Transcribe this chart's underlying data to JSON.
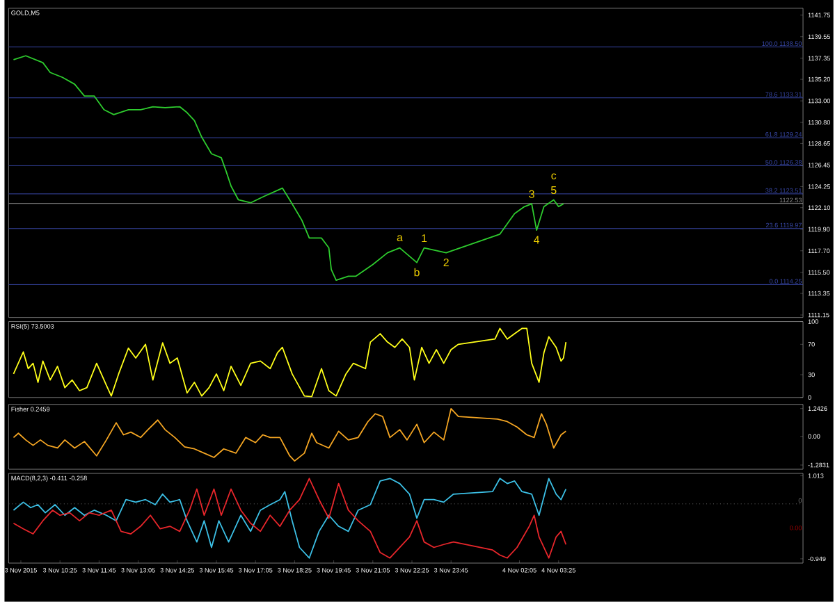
{
  "chart_data": [
    {
      "type": "line",
      "title": "GOLD,M5",
      "tick_labels": "y",
      "xlim": [
        "2015-11-03T08:40",
        "2015-11-04T11:45"
      ],
      "ylim": [
        1110.9,
        1142.45
      ],
      "x": [
        "2015-11-03T08:50",
        "2015-11-03T09:15",
        "2015-11-03T09:50",
        "2015-11-03T10:05",
        "2015-11-03T10:30",
        "2015-11-03T10:55",
        "2015-11-03T11:15",
        "2015-11-03T11:35",
        "2015-11-03T11:55",
        "2015-11-03T12:15",
        "2015-11-03T12:45",
        "2015-11-03T13:10",
        "2015-11-03T13:35",
        "2015-11-03T14:00",
        "2015-11-03T14:30",
        "2015-11-03T14:45",
        "2015-11-03T15:00",
        "2015-11-03T15:15",
        "2015-11-03T15:35",
        "2015-11-03T15:55",
        "2015-11-03T16:05",
        "2015-11-03T16:15",
        "2015-11-03T16:30",
        "2015-11-03T16:55",
        "2015-11-03T17:20",
        "2015-11-03T18:00",
        "2015-11-03T18:15",
        "2015-11-03T18:40",
        "2015-11-03T18:55",
        "2015-11-03T19:20",
        "2015-11-03T19:35",
        "2015-11-03T19:40",
        "2015-11-03T19:50",
        "2015-11-03T20:15",
        "2015-11-03T20:30",
        "2015-11-03T21:05",
        "2015-11-03T21:35",
        "2015-11-03T22:00",
        "2015-11-03T22:35",
        "2015-11-03T22:50",
        "2015-11-03T23:35",
        "2015-11-04T01:25",
        "2015-11-04T01:45",
        "2015-11-04T01:55",
        "2015-11-04T02:15",
        "2015-11-04T02:30",
        "2015-11-04T02:40",
        "2015-11-04T02:55",
        "2015-11-04T03:15",
        "2015-11-04T03:25",
        "2015-11-04T03:35"
      ],
      "series": [
        {
          "color": "#2ecc2e",
          "values": [
            1137.2,
            1137.6,
            1136.9,
            1135.9,
            1135.4,
            1134.7,
            1133.5,
            1133.5,
            1132.1,
            1131.6,
            1132.1,
            1132.1,
            1132.4,
            1132.3,
            1132.4,
            1131.8,
            1131.0,
            1129.3,
            1127.6,
            1127.2,
            1125.8,
            1124.3,
            1122.9,
            1122.6,
            1123.2,
            1124.1,
            1122.9,
            1120.8,
            1119.0,
            1119.0,
            1118.0,
            1115.8,
            1114.7,
            1115.1,
            1115.1,
            1116.3,
            1117.5,
            1118.0,
            1116.5,
            1118.0,
            1117.5,
            1119.4,
            1120.8,
            1121.5,
            1122.2,
            1122.5,
            1119.8,
            1122.2,
            1122.9,
            1122.2,
            1122.5
          ]
        }
      ],
      "yticks": [
        1141.75,
        1139.55,
        1137.35,
        {
          "value": 1135.2,
          "label": "1135.20"
        },
        {
          "value": 1133.0,
          "label": "1133.00"
        },
        {
          "value": 1130.8,
          "label": "1130.80"
        },
        1128.65,
        1126.45,
        1124.25,
        {
          "value": 1122.1,
          "label": "1122.10"
        },
        {
          "value": 1119.9,
          "label": "1119.90"
        },
        {
          "value": 1117.7,
          "label": "1117.70"
        },
        {
          "value": 1115.5,
          "label": "1115.50"
        },
        1113.35,
        1111.15
      ],
      "ref_lines": [
        {
          "axis": "y",
          "value": 1138.5,
          "label": "100.0 1138.50",
          "color": "#3848a8"
        },
        {
          "axis": "y",
          "value": 1133.31,
          "label": "78.6 1133.31",
          "color": "#3848a8"
        },
        {
          "axis": "y",
          "value": 1129.24,
          "label": "61.8 1129.24",
          "color": "#3848a8"
        },
        {
          "axis": "y",
          "value": 1126.38,
          "label": "50.0 1126.38",
          "color": "#3848a8"
        },
        {
          "axis": "y",
          "value": 1123.51,
          "label": "38.2 1123.51",
          "color": "#3848a8"
        },
        {
          "axis": "y",
          "value": 1122.53,
          "label": "1122.53",
          "color": "#8a8a8a"
        },
        {
          "axis": "y",
          "value": 1119.97,
          "label": "23.6 1119.97",
          "color": "#3848a8"
        },
        {
          "axis": "y",
          "value": 1114.25,
          "label": "0.0 1114.25",
          "color": "#3848a8"
        }
      ],
      "annotations": [
        {
          "text": "a",
          "x": "2015-11-03T22:00",
          "y": 1118.0
        },
        {
          "text": "b",
          "x": "2015-11-03T22:35",
          "y": 1116.5
        },
        {
          "text": "1",
          "x": "2015-11-03T22:50",
          "y": 1118.0
        },
        {
          "text": "2",
          "x": "2015-11-03T23:35",
          "y": 1117.5
        },
        {
          "text": "3",
          "x": "2015-11-04T02:30",
          "y": 1122.5
        },
        {
          "text": "4",
          "x": "2015-11-04T02:40",
          "y": 1119.8
        },
        {
          "text": "5",
          "x": "2015-11-04T03:15",
          "y": 1122.9
        },
        {
          "text": "c",
          "x": "2015-11-04T03:15",
          "y": 1122.9
        }
      ]
    },
    {
      "type": "line",
      "title": "RSI(5) 73.5003",
      "tick_labels": "y",
      "xlim": [
        "2015-11-03T08:40",
        "2015-11-04T11:45"
      ],
      "ylim": [
        0,
        100
      ],
      "yticks": [
        100,
        70,
        30,
        0
      ],
      "x": [
        "2015-11-03T08:50",
        "2015-11-03T09:10",
        "2015-11-03T09:20",
        "2015-11-03T09:30",
        "2015-11-03T09:40",
        "2015-11-03T09:50",
        "2015-11-03T10:05",
        "2015-11-03T10:20",
        "2015-11-03T10:35",
        "2015-11-03T10:50",
        "2015-11-03T11:05",
        "2015-11-03T11:20",
        "2015-11-03T11:40",
        "2015-11-03T12:00",
        "2015-11-03T12:10",
        "2015-11-03T12:25",
        "2015-11-03T12:45",
        "2015-11-03T13:00",
        "2015-11-03T13:20",
        "2015-11-03T13:35",
        "2015-11-03T13:55",
        "2015-11-03T14:10",
        "2015-11-03T14:25",
        "2015-11-03T14:45",
        "2015-11-03T15:00",
        "2015-11-03T15:15",
        "2015-11-03T15:30",
        "2015-11-03T15:45",
        "2015-11-03T16:00",
        "2015-11-03T16:15",
        "2015-11-03T16:35",
        "2015-11-03T16:55",
        "2015-11-03T17:15",
        "2015-11-03T17:35",
        "2015-11-03T17:50",
        "2015-11-03T18:00",
        "2015-11-03T18:20",
        "2015-11-03T18:45",
        "2015-11-03T19:00",
        "2015-11-03T19:20",
        "2015-11-03T19:35",
        "2015-11-03T19:50",
        "2015-11-03T20:10",
        "2015-11-03T20:25",
        "2015-11-03T20:50",
        "2015-11-03T21:00",
        "2015-11-03T21:20",
        "2015-11-03T21:35",
        "2015-11-03T21:50",
        "2015-11-03T22:05",
        "2015-11-03T22:20",
        "2015-11-03T22:30",
        "2015-11-03T22:45",
        "2015-11-03T23:00",
        "2015-11-03T23:15",
        "2015-11-03T23:30",
        "2015-11-03T23:45",
        "2015-11-04T00:00",
        "2015-11-04T01:15",
        "2015-11-04T01:25",
        "2015-11-04T01:40",
        "2015-11-04T01:55",
        "2015-11-04T02:10",
        "2015-11-04T02:20",
        "2015-11-04T02:30",
        "2015-11-04T02:45",
        "2015-11-04T02:55",
        "2015-11-04T03:05",
        "2015-11-04T03:20",
        "2015-11-04T03:30",
        "2015-11-04T03:35",
        "2015-11-04T03:40"
      ],
      "series": [
        {
          "color": "#ffff1a",
          "values": [
            31,
            60,
            38,
            45,
            20,
            48,
            23,
            41,
            13,
            23,
            9,
            13,
            45,
            16,
            2,
            31,
            65,
            52,
            70,
            23,
            72,
            45,
            52,
            6,
            20,
            2,
            13,
            31,
            9,
            41,
            16,
            45,
            48,
            38,
            59,
            66,
            31,
            2,
            1,
            38,
            9,
            2,
            31,
            45,
            38,
            73,
            84,
            73,
            66,
            77,
            66,
            23,
            66,
            45,
            63,
            45,
            63,
            70,
            77,
            91,
            77,
            84,
            91,
            91,
            45,
            20,
            59,
            80,
            66,
            48,
            52,
            73
          ]
        }
      ]
    },
    {
      "type": "line",
      "title": "Fisher 0.2459",
      "tick_labels": "y",
      "xlim": [
        "2015-11-03T08:40",
        "2015-11-04T11:45"
      ],
      "ylim": [
        -1.47,
        1.43
      ],
      "yticks": [
        1.2426,
        {
          "value": 0,
          "label": "0.00"
        },
        -1.2831
      ],
      "x": [
        "2015-11-03T08:50",
        "2015-11-03T09:00",
        "2015-11-03T09:15",
        "2015-11-03T09:30",
        "2015-11-03T09:45",
        "2015-11-03T10:00",
        "2015-11-03T10:20",
        "2015-11-03T10:35",
        "2015-11-03T10:55",
        "2015-11-03T11:15",
        "2015-11-03T11:40",
        "2015-11-03T12:00",
        "2015-11-03T12:20",
        "2015-11-03T12:35",
        "2015-11-03T12:50",
        "2015-11-03T13:10",
        "2015-11-03T13:25",
        "2015-11-03T13:45",
        "2015-11-03T14:00",
        "2015-11-03T14:20",
        "2015-11-03T14:40",
        "2015-11-03T15:00",
        "2015-11-03T15:20",
        "2015-11-03T15:40",
        "2015-11-03T16:00",
        "2015-11-03T16:25",
        "2015-11-03T16:45",
        "2015-11-03T17:05",
        "2015-11-03T17:20",
        "2015-11-03T17:35",
        "2015-11-03T17:55",
        "2015-11-03T18:15",
        "2015-11-03T18:25",
        "2015-11-03T18:45",
        "2015-11-03T19:00",
        "2015-11-03T19:10",
        "2015-11-03T19:35",
        "2015-11-03T19:55",
        "2015-11-03T20:15",
        "2015-11-03T20:35",
        "2015-11-03T20:55",
        "2015-11-03T21:10",
        "2015-11-03T21:25",
        "2015-11-03T21:40",
        "2015-11-03T22:00",
        "2015-11-03T22:15",
        "2015-11-03T22:35",
        "2015-11-03T22:50",
        "2015-11-03T23:10",
        "2015-11-03T23:30",
        "2015-11-03T23:45",
        "2015-11-04T00:00",
        "2015-11-04T01:20",
        "2015-11-04T01:40",
        "2015-11-04T02:00",
        "2015-11-04T02:20",
        "2015-11-04T02:35",
        "2015-11-04T02:50",
        "2015-11-04T03:00",
        "2015-11-04T03:15",
        "2015-11-04T03:30",
        "2015-11-04T03:40"
      ],
      "series": [
        {
          "color": "#f5a623",
          "values": [
            -0.05,
            0.14,
            -0.16,
            -0.4,
            -0.16,
            -0.4,
            -0.52,
            -0.16,
            -0.52,
            -0.23,
            -0.87,
            -0.16,
            0.61,
            0.07,
            0.19,
            -0.05,
            0.3,
            0.73,
            0.3,
            -0.05,
            -0.47,
            -0.56,
            -0.75,
            -0.94,
            -0.56,
            -0.75,
            -0.05,
            -0.28,
            0.07,
            -0.05,
            -0.05,
            -0.87,
            -1.1,
            -0.75,
            0.14,
            -0.28,
            -0.52,
            0.23,
            -0.16,
            -0.05,
            0.66,
            1.01,
            0.89,
            -0.05,
            0.3,
            -0.16,
            0.54,
            -0.28,
            0.19,
            -0.16,
            1.24,
            0.89,
            0.77,
            0.66,
            0.42,
            0.07,
            -0.05,
            1.01,
            0.54,
            -0.52,
            0.07,
            0.23
          ]
        }
      ]
    },
    {
      "type": "line",
      "title": "MACD(8,2,3) -0.411 -0.258",
      "xlim": [
        "2015-11-03T08:40",
        "2015-11-04T11:45"
      ],
      "ylim": [
        -1.05,
        1.07
      ],
      "yticks": [
        1.013,
        -0.949
      ],
      "ref_lines": [
        {
          "axis": "y",
          "value": 0.35,
          "label": "0",
          "color": "#6a6a6a",
          "line_style": "dotted"
        }
      ],
      "annotations": [
        "0.00"
      ],
      "xticks": [
        {
          "value": "2015-11-03T09:05",
          "label": "3 Nov 2015"
        },
        {
          "value": "2015-11-03T10:25",
          "label": "3 Nov 10:25"
        },
        {
          "value": "2015-11-03T11:45",
          "label": "3 Nov 11:45"
        },
        {
          "value": "2015-11-03T13:05",
          "label": "3 Nov 13:05"
        },
        {
          "value": "2015-11-03T14:25",
          "label": "3 Nov 14:25"
        },
        {
          "value": "2015-11-03T15:45",
          "label": "3 Nov 15:45"
        },
        {
          "value": "2015-11-03T17:05",
          "label": "3 Nov 17:05"
        },
        {
          "value": "2015-11-03T18:25",
          "label": "3 Nov 18:25"
        },
        {
          "value": "2015-11-03T19:45",
          "label": "3 Nov 19:45"
        },
        {
          "value": "2015-11-03T21:05",
          "label": "3 Nov 21:05"
        },
        {
          "value": "2015-11-03T22:25",
          "label": "3 Nov 22:25"
        },
        {
          "value": "2015-11-03T23:45",
          "label": "3 Nov 23:45"
        },
        {
          "value": "2015-11-04T02:05",
          "label": "4 Nov 02:05"
        },
        {
          "value": "2015-11-04T03:25",
          "label": "4 Nov 03:25"
        }
      ],
      "series": [
        {
          "color": "#3cc0e6",
          "x": [
            "2015-11-03T08:50",
            "2015-11-03T09:10",
            "2015-11-03T09:25",
            "2015-11-03T09:40",
            "2015-11-03T09:55",
            "2015-11-03T10:15",
            "2015-11-03T10:35",
            "2015-11-03T10:55",
            "2015-11-03T11:15",
            "2015-11-03T11:35",
            "2015-11-03T12:00",
            "2015-11-03T12:20",
            "2015-11-03T12:40",
            "2015-11-03T13:00",
            "2015-11-03T13:20",
            "2015-11-03T13:40",
            "2015-11-03T13:55",
            "2015-11-03T14:10",
            "2015-11-03T14:30",
            "2015-11-03T14:45",
            "2015-11-03T15:05",
            "2015-11-03T15:20",
            "2015-11-03T15:35",
            "2015-11-03T15:50",
            "2015-11-03T16:10",
            "2015-11-03T16:35",
            "2015-11-03T16:55",
            "2015-11-03T17:15",
            "2015-11-03T17:35",
            "2015-11-03T17:55",
            "2015-11-03T18:05",
            "2015-11-03T18:20",
            "2015-11-03T18:35",
            "2015-11-03T18:55",
            "2015-11-03T19:15",
            "2015-11-03T19:35",
            "2015-11-03T19:55",
            "2015-11-03T20:15",
            "2015-11-03T20:35",
            "2015-11-03T21:00",
            "2015-11-03T21:20",
            "2015-11-03T21:40",
            "2015-11-03T22:00",
            "2015-11-03T22:20",
            "2015-11-03T22:35",
            "2015-11-03T22:50",
            "2015-11-03T23:10",
            "2015-11-03T23:30",
            "2015-11-03T23:50",
            "2015-11-04T01:10",
            "2015-11-04T01:25",
            "2015-11-04T01:40",
            "2015-11-04T01:55",
            "2015-11-04T02:10",
            "2015-11-04T02:30",
            "2015-11-04T02:45",
            "2015-11-04T03:05",
            "2015-11-04T03:20",
            "2015-11-04T03:30",
            "2015-11-04T03:40"
          ],
          "values": [
            0.2,
            0.39,
            0.26,
            0.33,
            0.14,
            0.33,
            0.08,
            0.26,
            0.08,
            0.2,
            0.08,
            -0.05,
            0.45,
            0.39,
            0.45,
            0.33,
            0.58,
            0.39,
            0.45,
            -0.05,
            -0.55,
            -0.05,
            -0.68,
            -0.05,
            -0.55,
            0.08,
            -0.3,
            0.2,
            0.33,
            0.45,
            0.64,
            -0.05,
            -0.68,
            -0.93,
            -0.3,
            0.08,
            -0.18,
            -0.3,
            0.2,
            0.33,
            0.89,
            0.95,
            0.83,
            0.58,
            0.01,
            0.45,
            0.45,
            0.39,
            0.58,
            0.64,
            0.95,
            0.83,
            0.89,
            0.64,
            0.58,
            0.08,
            0.95,
            0.58,
            0.45,
            0.7
          ]
        },
        {
          "color": "#e8262b",
          "x": [
            "2015-11-03T08:50",
            "2015-11-03T09:10",
            "2015-11-03T09:30",
            "2015-11-03T09:50",
            "2015-11-03T10:10",
            "2015-11-03T10:25",
            "2015-11-03T10:45",
            "2015-11-03T11:05",
            "2015-11-03T11:25",
            "2015-11-03T11:45",
            "2015-11-03T12:10",
            "2015-11-03T12:30",
            "2015-11-03T12:50",
            "2015-11-03T13:10",
            "2015-11-03T13:30",
            "2015-11-03T13:50",
            "2015-11-03T14:10",
            "2015-11-03T14:30",
            "2015-11-03T14:50",
            "2015-11-03T15:05",
            "2015-11-03T15:20",
            "2015-11-03T15:40",
            "2015-11-03T15:55",
            "2015-11-03T16:15",
            "2015-11-03T16:35",
            "2015-11-03T16:55",
            "2015-11-03T17:15",
            "2015-11-03T17:35",
            "2015-11-03T17:55",
            "2015-11-03T18:15",
            "2015-11-03T18:35",
            "2015-11-03T18:55",
            "2015-11-03T19:15",
            "2015-11-03T19:35",
            "2015-11-03T19:55",
            "2015-11-03T20:15",
            "2015-11-03T20:35",
            "2015-11-03T21:00",
            "2015-11-03T21:20",
            "2015-11-03T21:40",
            "2015-11-03T22:00",
            "2015-11-03T22:20",
            "2015-11-03T22:35",
            "2015-11-03T22:50",
            "2015-11-03T23:10",
            "2015-11-03T23:30",
            "2015-11-03T23:50",
            "2015-11-04T01:10",
            "2015-11-04T01:25",
            "2015-11-04T01:40",
            "2015-11-04T02:00",
            "2015-11-04T02:25",
            "2015-11-04T02:35",
            "2015-11-04T02:45",
            "2015-11-04T03:05",
            "2015-11-04T03:20",
            "2015-11-04T03:30",
            "2015-11-04T03:40"
          ],
          "values": [
            -0.11,
            -0.24,
            -0.36,
            -0.05,
            0.2,
            0.08,
            0.14,
            -0.05,
            0.14,
            0.08,
            0.2,
            -0.3,
            -0.36,
            -0.18,
            0.08,
            -0.24,
            -0.18,
            -0.3,
            0.2,
            0.7,
            0.08,
            0.7,
            0.08,
            0.7,
            0.2,
            -0.11,
            -0.3,
            0.08,
            -0.18,
            0.2,
            0.45,
            0.95,
            0.45,
            0.01,
            0.83,
            0.2,
            -0.05,
            -0.3,
            -0.8,
            -0.93,
            -0.68,
            -0.43,
            -0.05,
            -0.55,
            -0.68,
            -0.61,
            -0.55,
            -0.74,
            -0.86,
            -0.93,
            -0.68,
            -0.18,
            0.08,
            -0.43,
            -0.93,
            -0.43,
            -0.3,
            -0.61
          ]
        }
      ]
    }
  ]
}
